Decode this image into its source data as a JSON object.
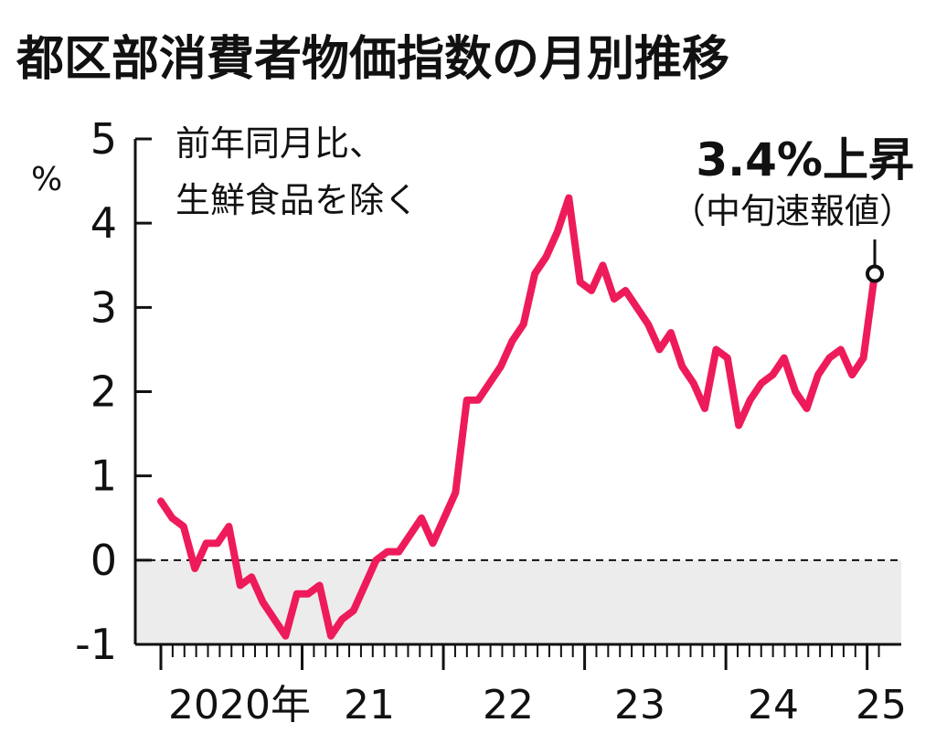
{
  "chart_data": {
    "type": "line",
    "title": "都区部消費者物価指数の月別推移",
    "ylabel": "%",
    "note": [
      "前年同月比、",
      "生鮮食品を除く"
    ],
    "ylim": [
      -1,
      5
    ],
    "yticks": [
      "5",
      "4",
      "3",
      "2",
      "1",
      "0",
      "-1"
    ],
    "xticks": [
      "2020年",
      "21",
      "22",
      "23",
      "24",
      "25"
    ],
    "x_start": "2020-01",
    "x_end": "2025-01",
    "series": [
      {
        "color": "#ee1b5a",
        "values": [
          0.7,
          0.5,
          0.4,
          -0.1,
          0.2,
          0.2,
          0.4,
          -0.3,
          -0.2,
          -0.5,
          -0.7,
          -0.9,
          -0.4,
          -0.4,
          -0.3,
          -0.9,
          -0.7,
          -0.6,
          -0.3,
          0.0,
          0.1,
          0.1,
          0.3,
          0.5,
          0.2,
          0.5,
          0.8,
          1.9,
          1.9,
          2.1,
          2.3,
          2.6,
          2.8,
          3.4,
          3.6,
          3.9,
          4.3,
          3.3,
          3.2,
          3.5,
          3.1,
          3.2,
          3.0,
          2.8,
          2.5,
          2.7,
          2.3,
          2.1,
          1.8,
          2.5,
          2.4,
          1.6,
          1.9,
          2.1,
          2.2,
          2.4,
          2.0,
          1.8,
          2.2,
          2.4,
          2.5,
          2.2,
          2.4,
          3.4
        ]
      }
    ],
    "shaded_below_zero": true,
    "zero_line": "dashed",
    "callout": {
      "main": "3.4%上昇",
      "sub": "（中旬速報値）"
    }
  }
}
